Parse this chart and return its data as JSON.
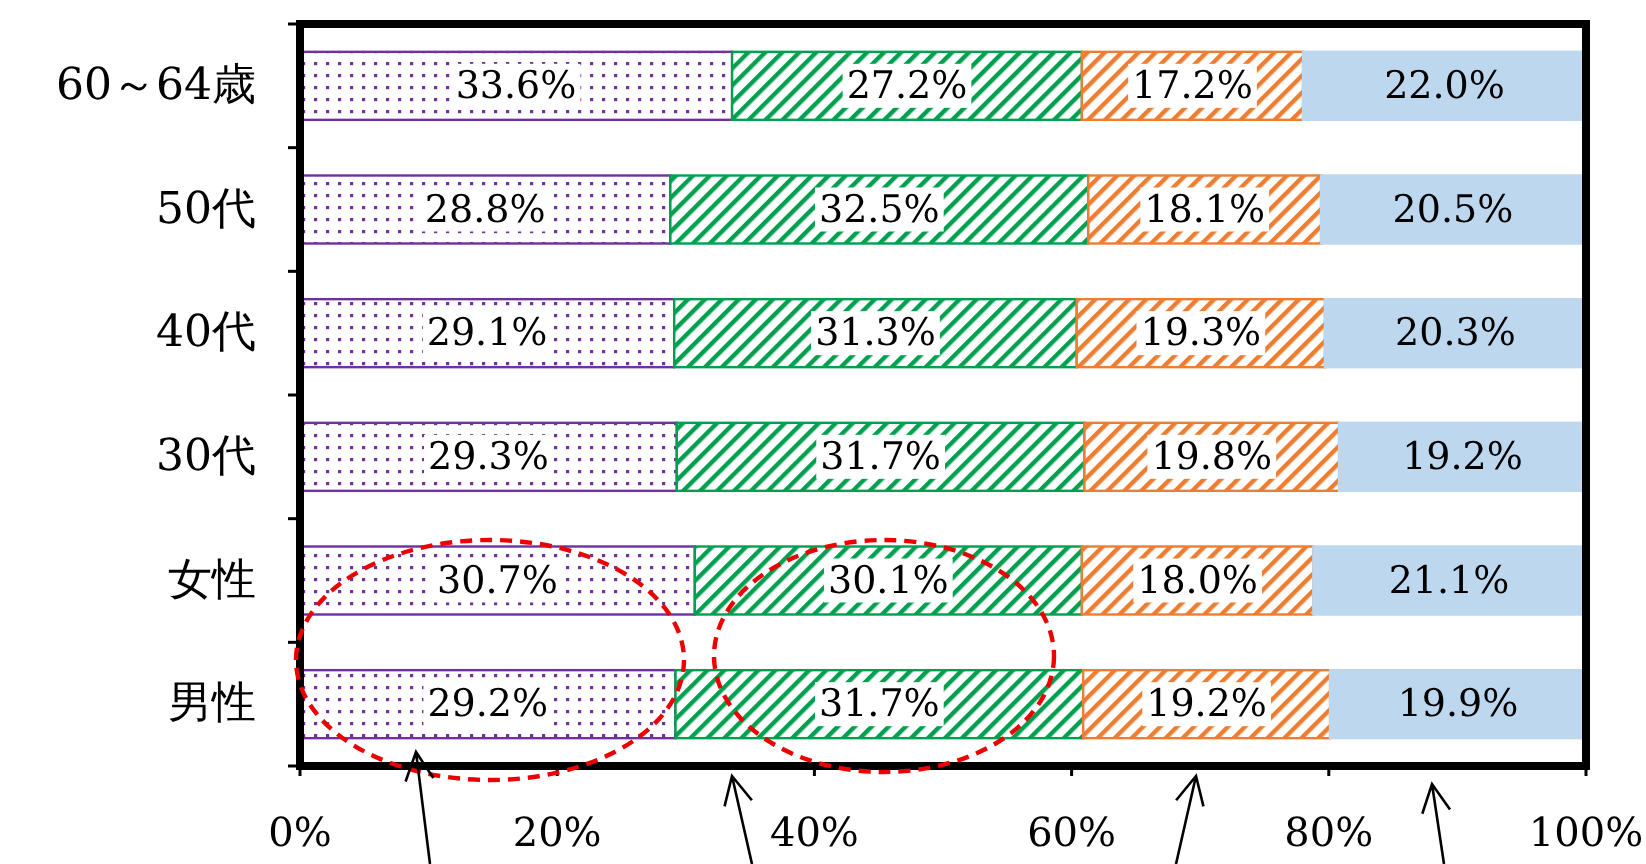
{
  "chart_data": {
    "type": "bar",
    "orientation": "horizontal",
    "stacked": true,
    "categories": [
      "60～64歳",
      "50代",
      "40代",
      "30代",
      "女性",
      "男性"
    ],
    "series": [
      {
        "color": "#7030a0",
        "values": [
          33.6,
          28.8,
          29.1,
          29.3,
          30.7,
          29.2
        ],
        "value_labels": [
          "33.6%",
          "28.8%",
          "29.1%",
          "29.3%",
          "30.7%",
          "29.2%"
        ]
      },
      {
        "color": "#00a050",
        "values": [
          27.2,
          32.5,
          31.3,
          31.7,
          30.1,
          31.7
        ],
        "value_labels": [
          "27.2%",
          "32.5%",
          "31.3%",
          "31.7%",
          "30.1%",
          "31.7%"
        ]
      },
      {
        "color": "#ed7d31",
        "values": [
          17.2,
          18.1,
          19.3,
          19.8,
          18.0,
          19.2
        ],
        "value_labels": [
          "17.2%",
          "18.1%",
          "19.3%",
          "19.8%",
          "18.0%",
          "19.2%"
        ]
      },
      {
        "color": "#bdd7ee",
        "values": [
          22.0,
          20.5,
          20.3,
          19.2,
          21.1,
          19.9
        ],
        "value_labels": [
          "22.0%",
          "20.5%",
          "20.3%",
          "19.2%",
          "21.1%",
          "19.9%"
        ]
      }
    ],
    "xlim": [
      0,
      100
    ],
    "xticks": [
      {
        "value": 0,
        "label": "0%"
      },
      {
        "value": 20,
        "label": "20%"
      },
      {
        "value": 40,
        "label": "40%"
      },
      {
        "value": 60,
        "label": "60%"
      },
      {
        "value": 80,
        "label": "80%"
      },
      {
        "value": 100,
        "label": "100%"
      }
    ]
  }
}
